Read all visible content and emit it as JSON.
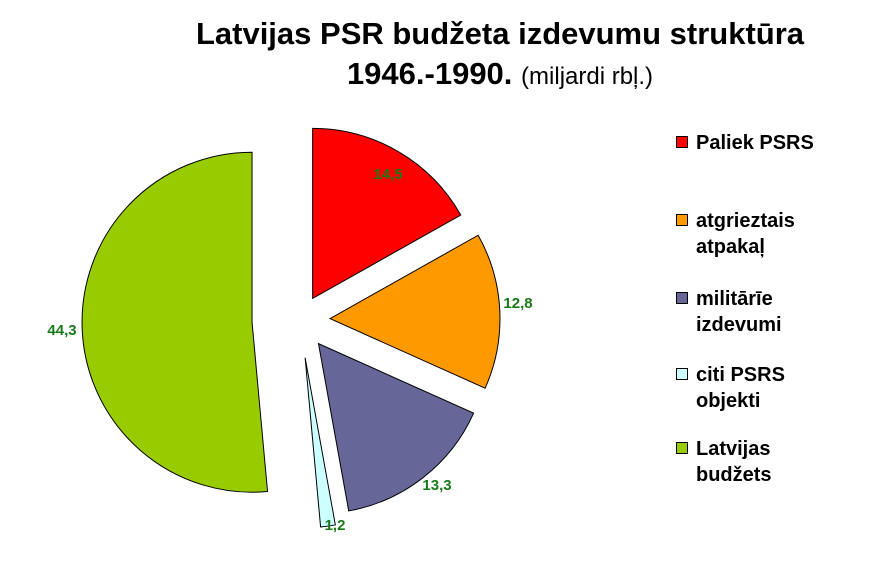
{
  "chart_data": {
    "type": "pie",
    "title_line1": "Latvijas PSR budžeta izdevumu struktūra",
    "title_years": "1946.-1990.",
    "title_unit": "(miljardi rbļ.)",
    "slices": [
      {
        "label": "Paliek PSRS",
        "value": 14.5,
        "value_label": "14,5",
        "color": "#ff0000"
      },
      {
        "label": "atgrieztais\natpakaļ",
        "value": 12.8,
        "value_label": "12,8",
        "color": "#ff9900"
      },
      {
        "label": "militārīe\nizdevumi",
        "value": 13.3,
        "value_label": "13,3",
        "color": "#666699"
      },
      {
        "label": "citi PSRS\nobjekti",
        "value": 1.2,
        "value_label": "1,2",
        "color": "#ccffff"
      },
      {
        "label": "Latvijas\nbudžets",
        "value": 44.3,
        "value_label": "44,3",
        "color": "#99cc00"
      }
    ],
    "legend_position": "right"
  }
}
